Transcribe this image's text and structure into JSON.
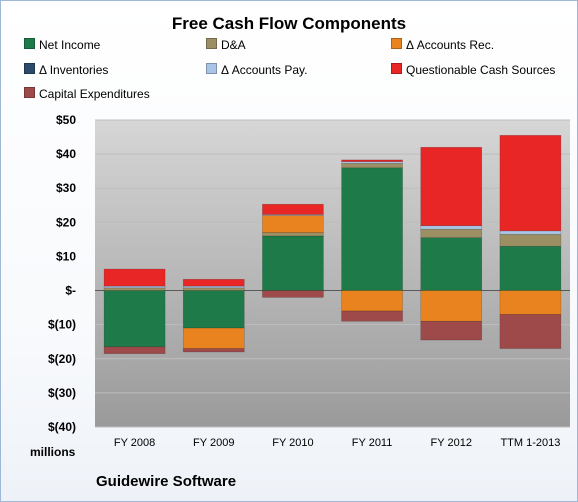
{
  "chart_data": {
    "type": "bar",
    "stacked": true,
    "title": "Free Cash Flow Components",
    "subtitle": "Guidewire Software",
    "ylabel": "millions",
    "ylim": [
      -40,
      50
    ],
    "yticks": [
      50,
      40,
      30,
      20,
      10,
      0,
      -10,
      -20,
      -30,
      -40
    ],
    "ytick_labels": [
      "$50",
      "$40",
      "$30",
      "$20",
      "$10",
      "$-",
      "$(10)",
      "$(20)",
      "$(30)",
      "$(40)"
    ],
    "categories": [
      "FY 2008",
      "FY 2009",
      "FY 2010",
      "FY 2011",
      "FY 2012",
      "TTM 1-2013"
    ],
    "legend_position": "top",
    "grid": true,
    "series": [
      {
        "name": "Net Income",
        "color": "#1f7a4a",
        "values": [
          -16.5,
          -11,
          16,
          36,
          15.5,
          13
        ]
      },
      {
        "name": "D&A",
        "color": "#9c8f63",
        "values": [
          0.8,
          0.8,
          1,
          1.3,
          2.5,
          3.5
        ]
      },
      {
        "name": "Δ Accounts Rec.",
        "color": "#e8831f",
        "values": [
          0,
          -6,
          5,
          -6,
          -9,
          -7
        ]
      },
      {
        "name": "Δ Inventories",
        "color": "#2c4a6b",
        "values": [
          0,
          0,
          0,
          0,
          0,
          0
        ]
      },
      {
        "name": "Δ Accounts Pay.",
        "color": "#a9c4e4",
        "values": [
          0.5,
          0.5,
          0.3,
          0.5,
          1,
          1
        ]
      },
      {
        "name": "Questionable Cash Sources",
        "color": "#e82626",
        "values": [
          5,
          2,
          3,
          0.5,
          23,
          28
        ]
      },
      {
        "name": "Capital Expenditures",
        "color": "#9e4a4a",
        "values": [
          -2,
          -1,
          -2,
          -3,
          -5.5,
          -10
        ]
      }
    ]
  }
}
